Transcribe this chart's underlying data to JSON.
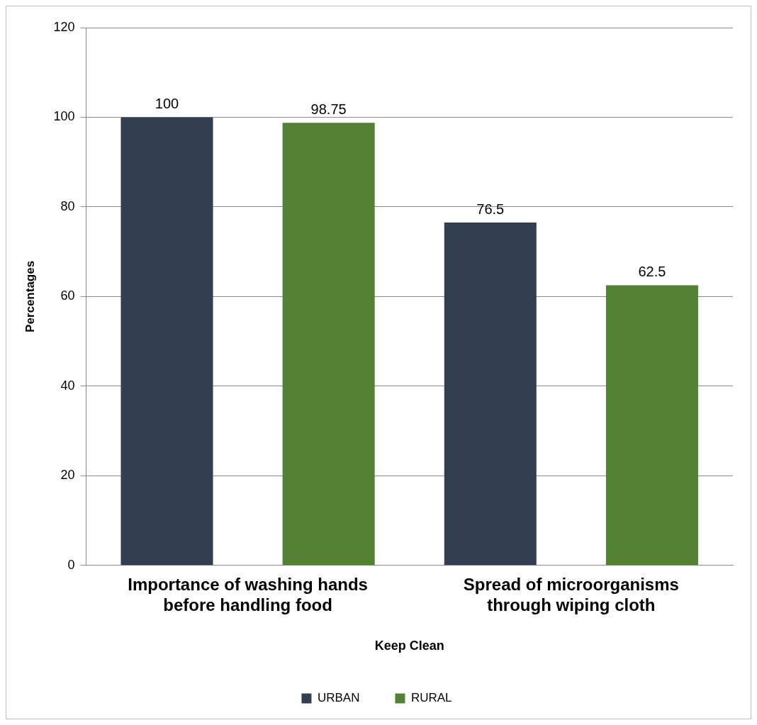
{
  "chart_data": {
    "type": "bar",
    "xlabel": "Keep Clean",
    "ylabel": "Percentages",
    "categories": [
      "Importance of washing hands before handling food",
      "Spread of microorganisms through wiping cloth"
    ],
    "series": [
      {
        "name": "URBAN",
        "color": "#333f50",
        "values": [
          100,
          76.5
        ]
      },
      {
        "name": "RURAL",
        "color": "#548235",
        "values": [
          98.75,
          62.5
        ]
      }
    ],
    "ylim": [
      0,
      120
    ],
    "yticks": [
      0,
      20,
      40,
      60,
      80,
      100,
      120
    ],
    "grid": "y",
    "legend": "bottom",
    "data_labels": true
  }
}
